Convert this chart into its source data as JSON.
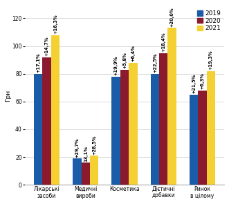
{
  "categories": [
    "Лікарські\nзасоби",
    "Медичні\nвироби",
    "Косметика",
    "Дієтичні\nдобавки",
    "Ринок\nв цілому"
  ],
  "values_2019": [
    80,
    19,
    78,
    80,
    65
  ],
  "values_2020": [
    92,
    16,
    83,
    95,
    68
  ],
  "values_2021": [
    108,
    21,
    88,
    113,
    82
  ],
  "labels_2019": [
    "+17,1%",
    "+29,7%",
    "+19,9%",
    "+22,5%",
    "+21,5%"
  ],
  "labels_2020": [
    "+14,7%",
    "13,1%",
    "+5,8%",
    "+18,4%",
    "+6,3%"
  ],
  "labels_2021": [
    "+16,3%",
    "+28,5%",
    "+6,4%",
    "+20,0%",
    "+19,3%"
  ],
  "color_2019": "#1A5CA8",
  "color_2020": "#8B1A2F",
  "color_2021": "#F5D033",
  "ylabel": "Грн",
  "ylim": [
    0,
    128
  ],
  "yticks": [
    0,
    20,
    40,
    60,
    80,
    100,
    120
  ],
  "legend_labels": [
    "2019",
    "2020",
    "2021"
  ],
  "bar_width": 0.22,
  "label_fontsize": 4.8,
  "axis_fontsize": 6.5,
  "legend_fontsize": 6.5,
  "tick_fontsize": 5.5
}
